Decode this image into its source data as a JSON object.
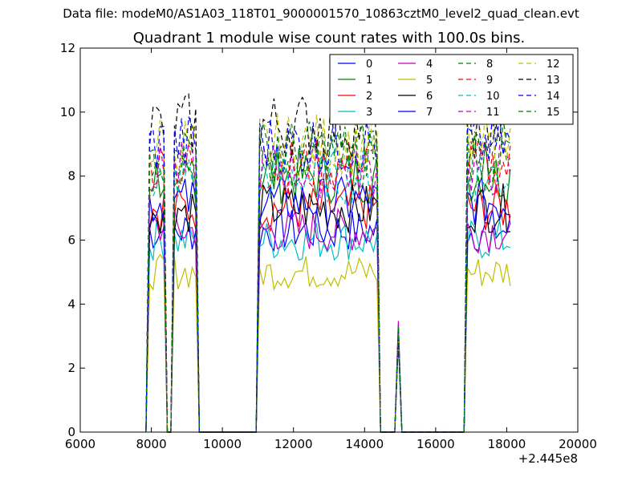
{
  "suptitle": "Data file: modeM0/AS1A03_118T01_9000001570_10863cztM0_level2_quad_clean.evt",
  "chart_data": {
    "type": "line",
    "title": "Quadrant 1 module wise count rates with 100.0s bins.",
    "xlabel": "",
    "ylabel": "",
    "x_offset_label": "+2.445e8",
    "xlim": [
      6000,
      20000
    ],
    "ylim": [
      0,
      12
    ],
    "x_ticks": [
      6000,
      8000,
      10000,
      12000,
      14000,
      16000,
      18000,
      20000
    ],
    "x_tick_labels": [
      "6000",
      "8000",
      "10000",
      "12000",
      "14000",
      "16000",
      "18000",
      "20000"
    ],
    "y_ticks": [
      0,
      2,
      4,
      6,
      8,
      10,
      12
    ],
    "y_tick_labels": [
      "0",
      "2",
      "4",
      "6",
      "8",
      "10",
      "12"
    ],
    "grid": false,
    "legend_position": "top-right",
    "legend_columns": 4,
    "segments": [
      {
        "x_start": 7850,
        "x_end": 8450
      },
      {
        "x_start": 8550,
        "x_end": 9350
      },
      {
        "x_start": 9350,
        "x_end": 10950,
        "zero": true
      },
      {
        "x_start": 10950,
        "x_end": 14450
      },
      {
        "x_start": 14450,
        "x_end": 16800,
        "zero": true
      },
      {
        "x_start": 16800,
        "x_end": 18150
      }
    ],
    "spike": {
      "x": 14950,
      "y_range": [
        2.8,
        3.5
      ]
    },
    "series": [
      {
        "name": "0",
        "color": "#0000ff",
        "style": "solid",
        "level": 6.3
      },
      {
        "name": "1",
        "color": "#008000",
        "style": "solid",
        "level": 8.0
      },
      {
        "name": "2",
        "color": "#ff0000",
        "style": "solid",
        "level": 7.0
      },
      {
        "name": "3",
        "color": "#00bfbf",
        "style": "solid",
        "level": 6.0
      },
      {
        "name": "4",
        "color": "#bf00bf",
        "style": "solid",
        "level": 6.3
      },
      {
        "name": "5",
        "color": "#bfbf00",
        "style": "solid",
        "level": 5.0
      },
      {
        "name": "6",
        "color": "#000000",
        "style": "solid",
        "level": 7.0
      },
      {
        "name": "7",
        "color": "#0000ff",
        "style": "solid",
        "level": 7.2
      },
      {
        "name": "8",
        "color": "#008000",
        "style": "dashed",
        "level": 8.5
      },
      {
        "name": "9",
        "color": "#ff0000",
        "style": "dashed",
        "level": 8.3
      },
      {
        "name": "10",
        "color": "#00bfbf",
        "style": "dashed",
        "level": 8.0
      },
      {
        "name": "11",
        "color": "#bf00bf",
        "style": "dashed",
        "level": 8.2
      },
      {
        "name": "12",
        "color": "#bfbf00",
        "style": "dashed",
        "level": 9.0
      },
      {
        "name": "13",
        "color": "#000000",
        "style": "dashed",
        "level": 9.6
      },
      {
        "name": "14",
        "color": "#0000ff",
        "style": "dashed",
        "level": 9.0
      },
      {
        "name": "15",
        "color": "#008000",
        "style": "dashed",
        "level": 8.8
      }
    ]
  }
}
